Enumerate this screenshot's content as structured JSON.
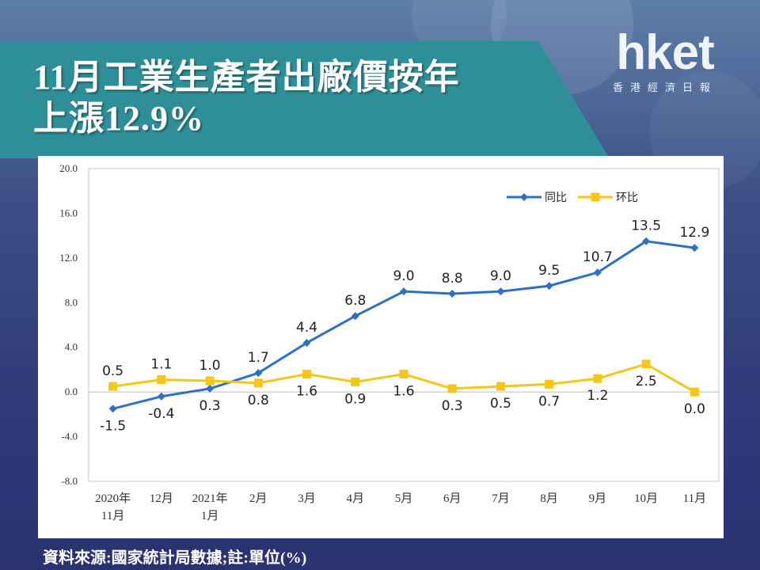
{
  "header": {
    "title_line1": "11月工業生產者出廠價按年",
    "title_line2": "上漲12.9%"
  },
  "logo": {
    "main": "hket",
    "sub": "香港經濟日報"
  },
  "footer": {
    "source": "資料來源:國家統計局數據;註:單位(%)"
  },
  "colors": {
    "yoy": "#2f6fc6",
    "mom": "#f5c518",
    "banner": "#2f8f98"
  },
  "chart_data": {
    "type": "line",
    "categories": [
      [
        "2020年",
        "11月"
      ],
      [
        "12月"
      ],
      [
        "2021年",
        "1月"
      ],
      [
        "2月"
      ],
      [
        "3月"
      ],
      [
        "4月"
      ],
      [
        "5月"
      ],
      [
        "6月"
      ],
      [
        "7月"
      ],
      [
        "8月"
      ],
      [
        "9月"
      ],
      [
        "10月"
      ],
      [
        "11月"
      ]
    ],
    "series": [
      {
        "name": "同比",
        "color": "#2f6fc6",
        "marker": "diamond",
        "values": [
          -1.5,
          -0.4,
          0.3,
          1.7,
          4.4,
          6.8,
          9.0,
          8.8,
          9.0,
          9.5,
          10.7,
          13.5,
          12.9
        ],
        "labels": [
          "-1.5",
          "-0.4",
          "0.3",
          "1.7",
          "4.4",
          "6.8",
          "9.0",
          "8.8",
          "9.0",
          "9.5",
          "10.7",
          "13.5",
          "12.9"
        ],
        "label_pos": [
          "below",
          "below",
          "below",
          "above",
          "above",
          "above",
          "above",
          "above",
          "above",
          "above",
          "above",
          "above",
          "above"
        ]
      },
      {
        "name": "环比",
        "color": "#f5c518",
        "marker": "square",
        "values": [
          0.5,
          1.1,
          1.0,
          0.8,
          1.6,
          0.9,
          1.6,
          0.3,
          0.5,
          0.7,
          1.2,
          2.5,
          0.0
        ],
        "labels": [
          "0.5",
          "1.1",
          "1.0",
          "0.8",
          "1.6",
          "0.9",
          "1.6",
          "0.3",
          "0.5",
          "0.7",
          "1.2",
          "2.5",
          "0.0"
        ],
        "label_pos": [
          "above",
          "above",
          "above",
          "below",
          "below",
          "below",
          "below",
          "below",
          "below",
          "below",
          "below",
          "below",
          "below"
        ]
      }
    ],
    "ylim": [
      -8.0,
      20.0
    ],
    "yticks": [
      "20.0",
      "16.0",
      "12.0",
      "8.0",
      "4.0",
      "0.0",
      "-4.0",
      "-8.0"
    ],
    "ytick_values": [
      20,
      16,
      12,
      8,
      4,
      0,
      -4,
      -8
    ],
    "grid": false,
    "legend": "top-right"
  }
}
